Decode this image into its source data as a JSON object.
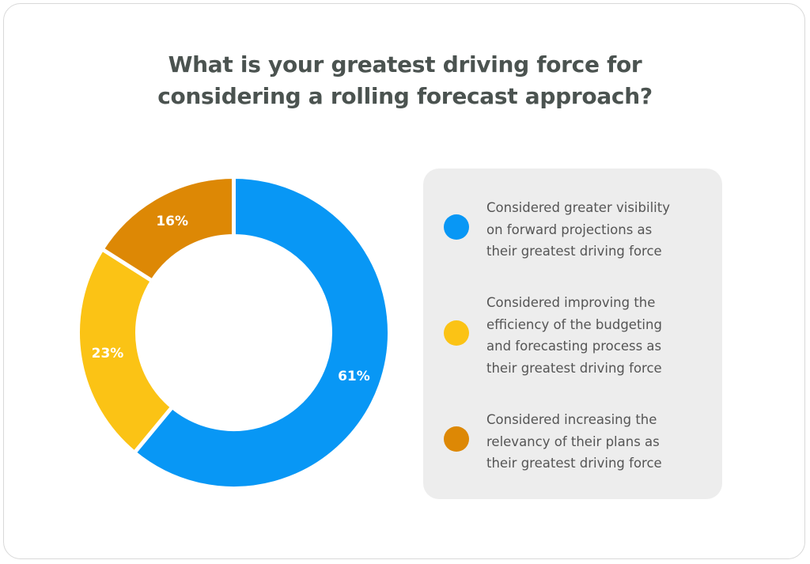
{
  "title_lines": [
    "What is your greatest driving force for",
    "considering a rolling forecast approach?"
  ],
  "chart_data": {
    "type": "pie",
    "donut": true,
    "title": "What is your greatest driving force for considering a rolling forecast approach?",
    "unit": "%",
    "categories": [
      "Considered greater visibility on forward projections as their greatest driving force",
      "Considered improving the efficiency of the budgeting and forecasting process as their greatest driving force",
      "Considered increasing the relevancy of their plans as their greatest driving force"
    ],
    "values": [
      61,
      23,
      16
    ],
    "data_labels": [
      "61%",
      "23%",
      "16%"
    ],
    "colors": [
      "#0897f5",
      "#fbc315",
      "#dd8805"
    ],
    "legend_position": "right"
  },
  "legend": [
    {
      "text": "Considered greater visibility\non forward projections as\ntheir greatest driving force",
      "color": "#0897f5"
    },
    {
      "text": "Considered improving the\nefficiency of the budgeting\nand forecasting process as\ntheir greatest driving force",
      "color": "#fbc315"
    },
    {
      "text": "Considered increasing the\nrelevancy of their plans as\ntheir greatest driving force",
      "color": "#dd8805"
    }
  ]
}
